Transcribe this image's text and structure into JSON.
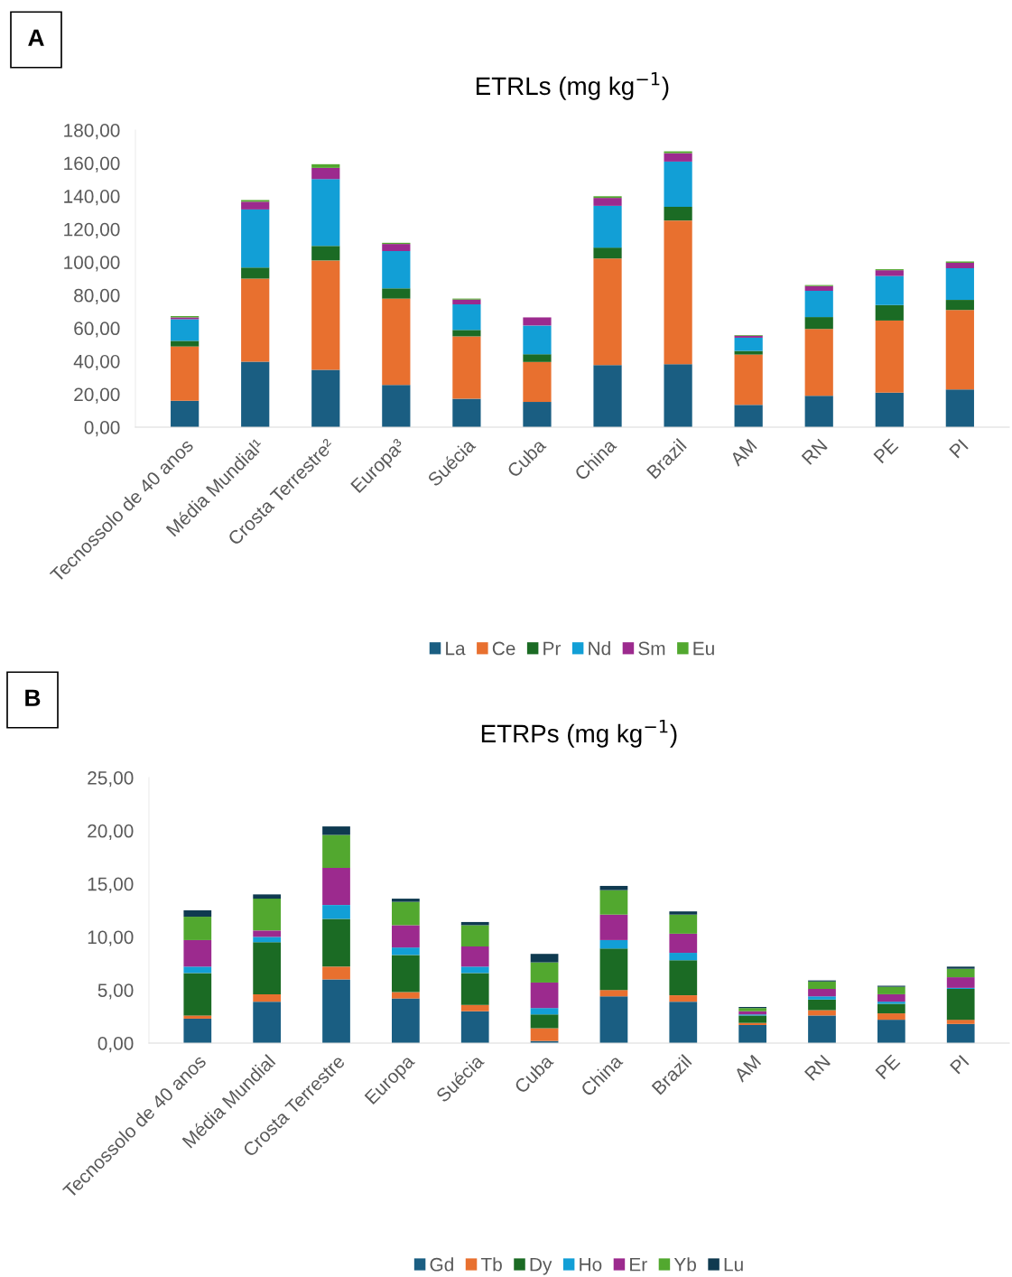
{
  "chart_data": [
    {
      "type": "bar",
      "stacked": true,
      "title": "ETRLs (mg kg$^{−1}$)",
      "annotations": [
        "A"
      ],
      "categories": [
        "Tecnossolo de 40 anos",
        "Média Mundial¹",
        "Crosta Terrestre²",
        "Europa³",
        "Suécia",
        "Cuba",
        "China",
        "Brazil",
        "AM",
        "RN",
        "PE",
        "PI"
      ],
      "series": [
        {
          "name": "La",
          "color": "#1a5e82",
          "values": [
            16.0,
            39.7,
            34.8,
            25.6,
            17.2,
            15.3,
            37.6,
            38.2,
            13.5,
            19.0,
            20.9,
            22.9
          ]
        },
        {
          "name": "Ce",
          "color": "#e8702f",
          "values": [
            32.9,
            50.3,
            66.2,
            52.3,
            37.8,
            24.2,
            64.6,
            87.0,
            30.5,
            40.5,
            43.7,
            48.1
          ]
        },
        {
          "name": "Pr",
          "color": "#1b6b24",
          "values": [
            3.4,
            6.7,
            8.8,
            6.2,
            3.9,
            4.7,
            6.6,
            8.3,
            2.2,
            7.2,
            9.4,
            6.1
          ]
        },
        {
          "name": "Nd",
          "color": "#129fd6",
          "values": [
            13.1,
            35.2,
            40.5,
            22.6,
            15.5,
            17.4,
            25.3,
            27.4,
            8.0,
            15.9,
            17.6,
            19.2
          ]
        },
        {
          "name": "Sm",
          "color": "#9c2a8e",
          "values": [
            1.1,
            4.7,
            6.8,
            4.3,
            2.9,
            4.9,
            4.8,
            5.1,
            1.2,
            2.9,
            3.5,
            3.3
          ]
        },
        {
          "name": "Eu",
          "color": "#52a82f",
          "values": [
            0.8,
            1.0,
            2.2,
            0.7,
            0.6,
            null,
            1.0,
            1.1,
            0.4,
            0.6,
            0.6,
            0.8
          ]
        }
      ],
      "ylim": [
        0,
        180
      ],
      "yticks": [
        {
          "value": 0,
          "label": "0,00"
        },
        {
          "value": 20,
          "label": "20,00"
        },
        {
          "value": 40,
          "label": "40,00"
        },
        {
          "value": 60,
          "label": "60,00"
        },
        {
          "value": 80,
          "label": "80,00"
        },
        {
          "value": 100,
          "label": "100,00"
        },
        {
          "value": 120,
          "label": "120,00"
        },
        {
          "value": 140,
          "label": "140,00"
        },
        {
          "value": 160,
          "label": "160,00"
        },
        {
          "value": 180,
          "label": "180,00"
        }
      ],
      "grid": false,
      "legend": "bottom"
    },
    {
      "type": "bar",
      "stacked": true,
      "title": "ETRPs (mg kg$^{−1}$)",
      "annotations": [
        "B"
      ],
      "categories": [
        "Tecnossolo de 40 anos",
        "Média Mundial",
        "Crosta Terrestre",
        "Europa",
        "Suécia",
        "Cuba",
        "China",
        "Brazil",
        "AM",
        "RN",
        "PE",
        "PI"
      ],
      "series": [
        {
          "name": "Gd",
          "color": "#1a5e82",
          "values": [
            2.3,
            3.9,
            6.0,
            4.2,
            3.0,
            0.2,
            4.4,
            3.9,
            1.7,
            2.6,
            2.2,
            1.8
          ]
        },
        {
          "name": "Tb",
          "color": "#e8702f",
          "values": [
            0.3,
            0.7,
            1.2,
            0.6,
            0.6,
            1.2,
            0.6,
            0.6,
            0.2,
            0.5,
            0.6,
            0.4
          ]
        },
        {
          "name": "Dy",
          "color": "#1b6b24",
          "values": [
            4.0,
            4.9,
            4.5,
            3.5,
            3.0,
            1.3,
            3.9,
            3.3,
            0.7,
            1.0,
            0.9,
            2.9
          ]
        },
        {
          "name": "Ho",
          "color": "#129fd6",
          "values": [
            0.6,
            0.5,
            1.3,
            0.7,
            0.6,
            0.6,
            0.8,
            0.7,
            0.1,
            0.3,
            0.2,
            0.1
          ]
        },
        {
          "name": "Er",
          "color": "#9c2a8e",
          "values": [
            2.5,
            0.6,
            3.5,
            2.1,
            1.9,
            2.4,
            2.4,
            1.8,
            0.3,
            0.7,
            0.7,
            1.0
          ]
        },
        {
          "name": "Yb",
          "color": "#52a82f",
          "values": [
            2.2,
            3.0,
            3.1,
            2.2,
            2.0,
            1.9,
            2.3,
            1.8,
            0.3,
            0.7,
            0.7,
            0.8
          ]
        },
        {
          "name": "Lu",
          "color": "#0f3a50",
          "values": [
            0.6,
            0.4,
            0.8,
            0.3,
            0.3,
            0.8,
            0.4,
            0.3,
            0.1,
            0.1,
            0.1,
            0.2
          ]
        }
      ],
      "ylim": [
        0,
        25
      ],
      "yticks": [
        {
          "value": 0,
          "label": "0,00"
        },
        {
          "value": 5,
          "label": "5,00"
        },
        {
          "value": 10,
          "label": "10,00"
        },
        {
          "value": 15,
          "label": "15,00"
        },
        {
          "value": 20,
          "label": "20,00"
        },
        {
          "value": 25,
          "label": "25,00"
        }
      ],
      "grid": false,
      "legend": "bottom"
    }
  ]
}
